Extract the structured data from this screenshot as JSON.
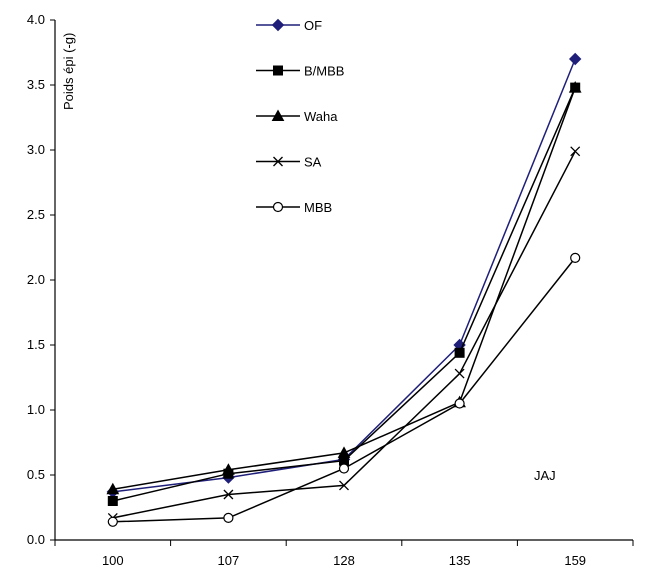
{
  "chart_data": {
    "type": "line",
    "title": "",
    "xlabel": "",
    "ylabel": "Poids épi (-g)",
    "annotation": "JAJ",
    "categories": [
      "100",
      "107",
      "128",
      "135",
      "159"
    ],
    "ylim": [
      0,
      4.0
    ],
    "y_ticks": [
      "0.0",
      "0.5",
      "1.0",
      "1.5",
      "2.0",
      "2.5",
      "3.0",
      "3.5",
      "4.0"
    ],
    "grid": false,
    "legend_position": "top-center",
    "series": [
      {
        "name": "OF",
        "marker": "diamond",
        "color": "#1f1f7a",
        "values": [
          0.37,
          0.48,
          0.62,
          1.5,
          3.7
        ]
      },
      {
        "name": "B/MBB",
        "marker": "square",
        "color": "#000000",
        "values": [
          0.3,
          0.51,
          0.61,
          1.44,
          3.48
        ]
      },
      {
        "name": "Waha",
        "marker": "triangle",
        "color": "#000000",
        "values": [
          0.39,
          0.54,
          0.67,
          1.06,
          3.48
        ]
      },
      {
        "name": "SA",
        "marker": "x",
        "color": "#000000",
        "values": [
          0.17,
          0.35,
          0.42,
          1.28,
          2.99
        ]
      },
      {
        "name": "MBB",
        "marker": "circle",
        "color": "#000000",
        "values": [
          0.14,
          0.17,
          0.55,
          1.05,
          2.17
        ]
      }
    ]
  }
}
